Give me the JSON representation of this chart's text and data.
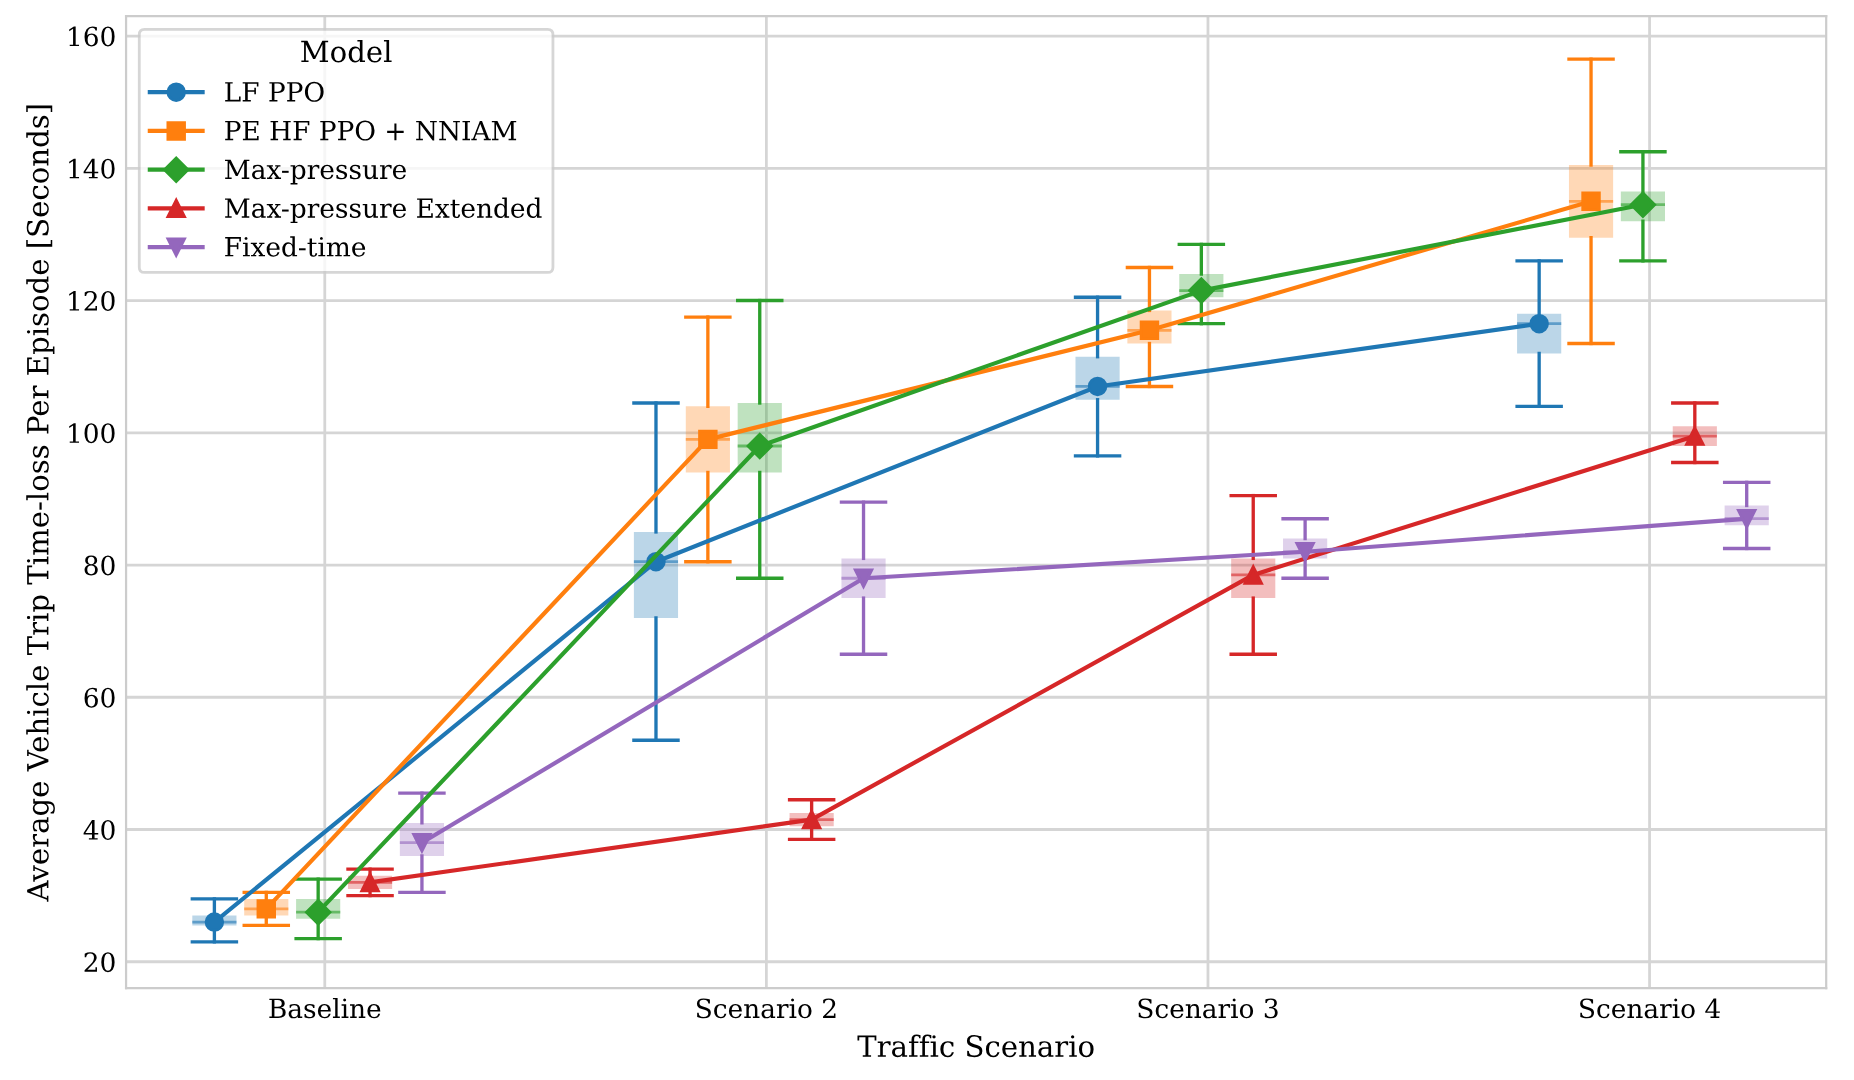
{
  "chart_data": {
    "type": "line",
    "xlabel": "Traffic Scenario",
    "ylabel": "Average Vehicle Trip Time-loss Per Episode [Seconds]",
    "legend_title": "Model",
    "legend": "top left",
    "grid": true,
    "line_style": "solid",
    "categories": [
      "Baseline",
      "Scenario 2",
      "Scenario 3",
      "Scenario 4"
    ],
    "ylim": [
      16,
      163
    ],
    "yticks": [
      20,
      40,
      60,
      80,
      100,
      120,
      140,
      160
    ],
    "series": [
      {
        "name": "LF PPO",
        "color": "#1f77b4",
        "marker": "circle",
        "values": [
          26,
          80.5,
          107,
          116.5
        ]
      },
      {
        "name": "PE HF PPO + NNIAM",
        "color": "#ff7f0e",
        "marker": "square",
        "values": [
          28,
          99,
          115.5,
          135
        ]
      },
      {
        "name": "Max-pressure",
        "color": "#2ca02c",
        "marker": "diamond",
        "values": [
          27.5,
          98,
          121.5,
          134.5
        ]
      },
      {
        "name": "Max-pressure Extended",
        "color": "#d62728",
        "marker": "triangle",
        "values": [
          32,
          41.5,
          78.5,
          99.5
        ]
      },
      {
        "name": "Fixed-time",
        "color": "#9467bd",
        "marker": "triangle",
        "values": [
          38,
          78,
          82,
          87
        ]
      },
      {
        "type": "box",
        "color": "#1f77b4",
        "boxes": [
          {
            "low": 23,
            "q1": 25.5,
            "median": 26,
            "q3": 27,
            "high": 29.5
          },
          {
            "low": 53.5,
            "q1": 72,
            "median": 80.5,
            "q3": 85,
            "high": 104.5
          },
          {
            "low": 96.5,
            "q1": 105,
            "median": 107,
            "q3": 111.5,
            "high": 120.5
          },
          {
            "low": 104,
            "q1": 112,
            "median": 116.5,
            "q3": 118,
            "high": 126
          }
        ]
      },
      {
        "type": "box",
        "color": "#ff7f0e",
        "boxes": [
          {
            "low": 25.5,
            "q1": 27,
            "median": 28,
            "q3": 29.5,
            "high": 30.5
          },
          {
            "low": 80.5,
            "q1": 94,
            "median": 99,
            "q3": 104,
            "high": 117.5
          },
          {
            "low": 107,
            "q1": 113.5,
            "median": 115.5,
            "q3": 118.5,
            "high": 125
          },
          {
            "low": 113.5,
            "q1": 129.5,
            "median": 135,
            "q3": 140.5,
            "high": 156.5
          }
        ]
      },
      {
        "type": "box",
        "color": "#2ca02c",
        "boxes": [
          {
            "low": 23.5,
            "q1": 26.5,
            "median": 27.5,
            "q3": 29.5,
            "high": 32.5
          },
          {
            "low": 78,
            "q1": 94,
            "median": 98,
            "q3": 104.5,
            "high": 120
          },
          {
            "low": 116.5,
            "q1": 120.5,
            "median": 121.5,
            "q3": 124,
            "high": 128.5
          },
          {
            "low": 126,
            "q1": 132,
            "median": 134.5,
            "q3": 136.5,
            "high": 142.5
          }
        ]
      },
      {
        "type": "box",
        "color": "#d62728",
        "boxes": [
          {
            "low": 30,
            "q1": 31,
            "median": 32,
            "q3": 33,
            "high": 34
          },
          {
            "low": 38.5,
            "q1": 40.5,
            "median": 41.5,
            "q3": 42.5,
            "high": 44.5
          },
          {
            "low": 66.5,
            "q1": 75,
            "median": 78.5,
            "q3": 81,
            "high": 90.5
          },
          {
            "low": 95.5,
            "q1": 98,
            "median": 99.5,
            "q3": 101,
            "high": 104.5
          }
        ]
      },
      {
        "type": "box",
        "color": "#9467bd",
        "boxes": [
          {
            "low": 30.5,
            "q1": 36,
            "median": 38,
            "q3": 41,
            "high": 45.5
          },
          {
            "low": 66.5,
            "q1": 75,
            "median": 78,
            "q3": 81,
            "high": 89.5
          },
          {
            "low": 78,
            "q1": 81,
            "median": 82,
            "q3": 84,
            "high": 87
          },
          {
            "low": 82.5,
            "q1": 86,
            "median": 87,
            "q3": 89,
            "high": 92.5
          }
        ]
      }
    ]
  }
}
